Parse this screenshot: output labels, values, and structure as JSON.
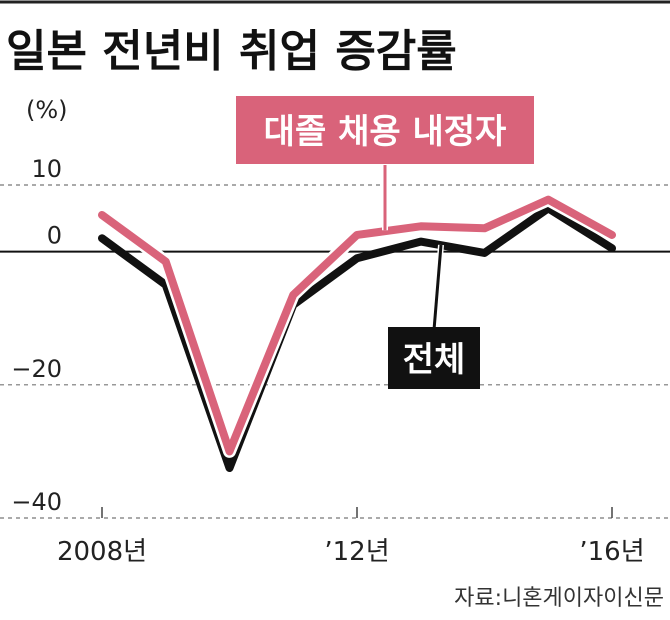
{
  "title": "일본 전년비 취업 증감률",
  "source": "자료:니혼게이자이신문",
  "chart_data": {
    "type": "line",
    "unit_label": "(%)",
    "x": [
      2008,
      2009,
      2010,
      2011,
      2012,
      2013,
      2014,
      2015,
      2016
    ],
    "x_ticks": [
      {
        "value": 2008,
        "label": "2008년"
      },
      {
        "value": 2012,
        "label": "’12년"
      },
      {
        "value": 2016,
        "label": "’16년"
      }
    ],
    "y_ticks": [
      {
        "value": 10,
        "label": "10"
      },
      {
        "value": 0,
        "label": "0"
      },
      {
        "value": -20,
        "label": "−20"
      },
      {
        "value": -40,
        "label": "−40"
      }
    ],
    "ylim": [
      -40,
      10
    ],
    "grid": true,
    "series": [
      {
        "name": "대졸 채용 내정자",
        "color": "#d9637a",
        "values": [
          5.5,
          -1.5,
          -30.0,
          -6.5,
          2.5,
          3.8,
          3.5,
          7.8,
          2.5
        ]
      },
      {
        "name": "전체",
        "color": "#111111",
        "values": [
          2.0,
          -5.0,
          -32.5,
          -8.0,
          -1.0,
          1.5,
          -0.2,
          6.5,
          0.5
        ]
      }
    ],
    "legend": "inline labels with callout lines"
  }
}
